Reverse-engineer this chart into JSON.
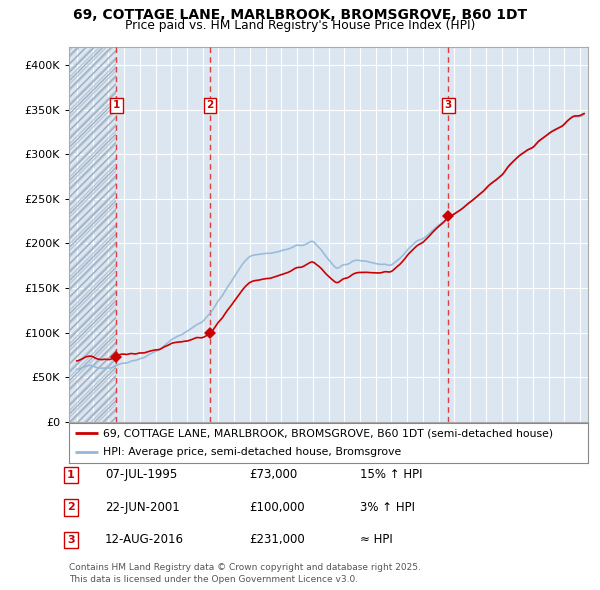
{
  "title": "69, COTTAGE LANE, MARLBROOK, BROMSGROVE, B60 1DT",
  "subtitle": "Price paid vs. HM Land Registry's House Price Index (HPI)",
  "background_color": "#ffffff",
  "plot_bg_color": "#dce6f1",
  "grid_color": "#ffffff",
  "sale_prices": [
    73000,
    100000,
    231000
  ],
  "sale_labels": [
    "1",
    "2",
    "3"
  ],
  "vline_x": [
    1995.52,
    2001.47,
    2016.62
  ],
  "hpi_line_color": "#93b8d8",
  "price_line_color": "#cc0000",
  "ylim": [
    0,
    420000
  ],
  "xlim": [
    1992.5,
    2025.5
  ],
  "yticks": [
    0,
    50000,
    100000,
    150000,
    200000,
    250000,
    300000,
    350000,
    400000
  ],
  "ytick_labels": [
    "£0",
    "£50K",
    "£100K",
    "£150K",
    "£200K",
    "£250K",
    "£300K",
    "£350K",
    "£400K"
  ],
  "legend_line1": "69, COTTAGE LANE, MARLBROOK, BROMSGROVE, B60 1DT (semi-detached house)",
  "legend_line2": "HPI: Average price, semi-detached house, Bromsgrove",
  "table_rows": [
    [
      "1",
      "07-JUL-1995",
      "£73,000",
      "15% ↑ HPI"
    ],
    [
      "2",
      "22-JUN-2001",
      "£100,000",
      "3% ↑ HPI"
    ],
    [
      "3",
      "12-AUG-2016",
      "£231,000",
      "≈ HPI"
    ]
  ],
  "footer": "Contains HM Land Registry data © Crown copyright and database right 2025.\nThis data is licensed under the Open Government Licence v3.0."
}
